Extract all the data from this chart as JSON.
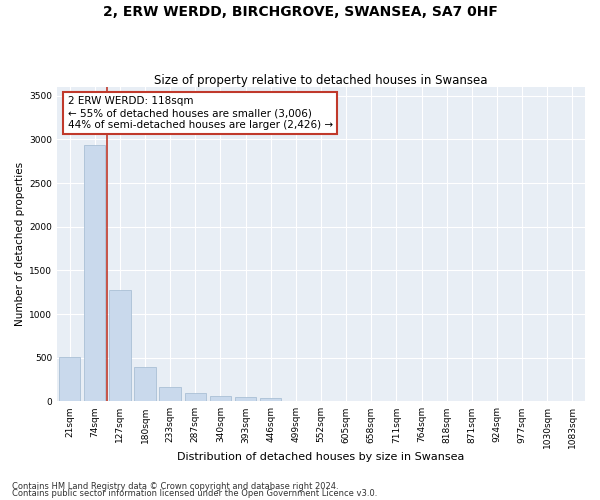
{
  "title": "2, ERW WERDD, BIRCHGROVE, SWANSEA, SA7 0HF",
  "subtitle": "Size of property relative to detached houses in Swansea",
  "xlabel": "Distribution of detached houses by size in Swansea",
  "ylabel": "Number of detached properties",
  "categories": [
    "21sqm",
    "74sqm",
    "127sqm",
    "180sqm",
    "233sqm",
    "287sqm",
    "340sqm",
    "393sqm",
    "446sqm",
    "499sqm",
    "552sqm",
    "605sqm",
    "658sqm",
    "711sqm",
    "764sqm",
    "818sqm",
    "871sqm",
    "924sqm",
    "977sqm",
    "1030sqm",
    "1083sqm"
  ],
  "values": [
    510,
    2940,
    1270,
    390,
    160,
    90,
    65,
    50,
    40,
    0,
    0,
    0,
    0,
    0,
    0,
    0,
    0,
    0,
    0,
    0,
    0
  ],
  "bar_color": "#c9d9ec",
  "bar_edge_color": "#a0b8d0",
  "highlight_line_color": "#c0392b",
  "annotation_text": "2 ERW WERDD: 118sqm\n← 55% of detached houses are smaller (3,006)\n44% of semi-detached houses are larger (2,426) →",
  "annotation_box_color": "#ffffff",
  "annotation_box_edge_color": "#c0392b",
  "ylim": [
    0,
    3600
  ],
  "yticks": [
    0,
    500,
    1000,
    1500,
    2000,
    2500,
    3000,
    3500
  ],
  "background_color": "#e8eef5",
  "footnote1": "Contains HM Land Registry data © Crown copyright and database right 2024.",
  "footnote2": "Contains public sector information licensed under the Open Government Licence v3.0.",
  "title_fontsize": 10,
  "subtitle_fontsize": 8.5,
  "xlabel_fontsize": 8,
  "ylabel_fontsize": 7.5,
  "tick_fontsize": 6.5,
  "annotation_fontsize": 7.5,
  "footnote_fontsize": 6
}
